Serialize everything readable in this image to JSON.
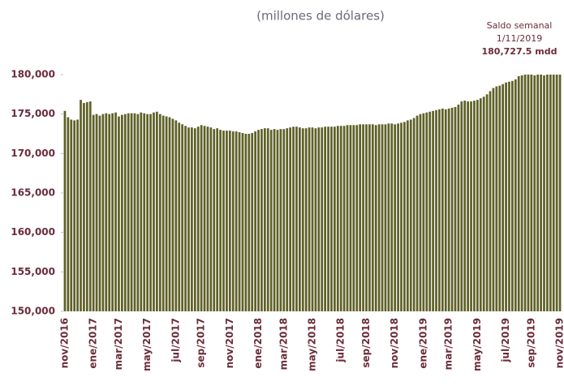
{
  "chart_data": {
    "type": "bar",
    "title": "(millones de dólares)",
    "annotations": [
      "Saldo semanal",
      "1/11/2019",
      "180,727.5 mdd"
    ],
    "color": "#5f6128",
    "ylim": [
      150000,
      180000
    ],
    "yticks": [
      {
        "value": 150000,
        "label": "150,000"
      },
      {
        "value": 155000,
        "label": "155,000"
      },
      {
        "value": 160000,
        "label": "160,000"
      },
      {
        "value": 165000,
        "label": "165,000"
      },
      {
        "value": 170000,
        "label": "170,000"
      },
      {
        "value": 175000,
        "label": "175,000"
      },
      {
        "value": 180000,
        "label": "180,000"
      }
    ],
    "categories": [
      "nov/2016",
      null,
      null,
      null,
      null,
      null,
      null,
      null,
      null,
      "ene/2017",
      null,
      null,
      null,
      null,
      null,
      null,
      null,
      "mar/2017",
      null,
      null,
      null,
      null,
      null,
      null,
      null,
      null,
      "may/2017",
      null,
      null,
      null,
      null,
      null,
      null,
      null,
      null,
      "jul/2017",
      null,
      null,
      null,
      null,
      null,
      null,
      null,
      "sep/2017",
      null,
      null,
      null,
      null,
      null,
      null,
      null,
      null,
      "nov/2017",
      null,
      null,
      null,
      null,
      null,
      null,
      null,
      null,
      "ene/2018",
      null,
      null,
      null,
      null,
      null,
      null,
      null,
      "mar/2018",
      null,
      null,
      null,
      null,
      null,
      null,
      null,
      null,
      "may/2018",
      null,
      null,
      null,
      null,
      null,
      null,
      null,
      null,
      "jul/2018",
      null,
      null,
      null,
      null,
      null,
      null,
      null,
      "sep/2018",
      null,
      null,
      null,
      null,
      null,
      null,
      null,
      null,
      "nov/2018",
      null,
      null,
      null,
      null,
      null,
      null,
      null,
      null,
      "ene/2019",
      null,
      null,
      null,
      null,
      null,
      null,
      null,
      "mar/2019",
      null,
      null,
      null,
      null,
      null,
      null,
      null,
      null,
      "may/2019",
      null,
      null,
      null,
      null,
      null,
      null,
      null,
      null,
      "jul/2019",
      null,
      null,
      null,
      null,
      null,
      null,
      null,
      "sep/2019",
      null,
      null,
      null,
      null,
      null,
      null,
      null,
      null,
      "nov/2019"
    ],
    "values": [
      175400,
      174600,
      174300,
      174200,
      174300,
      176800,
      176400,
      176500,
      176600,
      174900,
      175000,
      174800,
      175000,
      175100,
      175000,
      175100,
      175200,
      174700,
      174900,
      175000,
      175100,
      175100,
      175100,
      175000,
      175200,
      175100,
      175000,
      175000,
      175200,
      175300,
      175000,
      174800,
      174700,
      174600,
      174400,
      174200,
      173900,
      173700,
      173500,
      173300,
      173300,
      173200,
      173400,
      173600,
      173500,
      173400,
      173300,
      173100,
      173200,
      173000,
      172900,
      172900,
      172900,
      172800,
      172800,
      172700,
      172600,
      172500,
      172500,
      172600,
      172800,
      173000,
      173100,
      173200,
      173200,
      173000,
      173100,
      173000,
      173100,
      173100,
      173200,
      173300,
      173400,
      173400,
      173300,
      173200,
      173200,
      173300,
      173300,
      173200,
      173300,
      173300,
      173400,
      173400,
      173400,
      173400,
      173500,
      173500,
      173500,
      173600,
      173600,
      173600,
      173600,
      173700,
      173700,
      173700,
      173700,
      173700,
      173600,
      173700,
      173700,
      173700,
      173800,
      173800,
      173700,
      173800,
      173900,
      174000,
      174200,
      174300,
      174500,
      174800,
      175000,
      175100,
      175200,
      175300,
      175400,
      175500,
      175600,
      175700,
      175600,
      175700,
      175800,
      175900,
      176200,
      176600,
      176700,
      176600,
      176600,
      176700,
      176800,
      177000,
      177200,
      177500,
      177900,
      178300,
      178500,
      178600,
      178800,
      179000,
      179100,
      179200,
      179400,
      179800,
      179900,
      180000,
      180000,
      180000,
      179900,
      180000,
      180000,
      179900,
      180000,
      180000,
      180000,
      180000,
      180000
    ]
  }
}
